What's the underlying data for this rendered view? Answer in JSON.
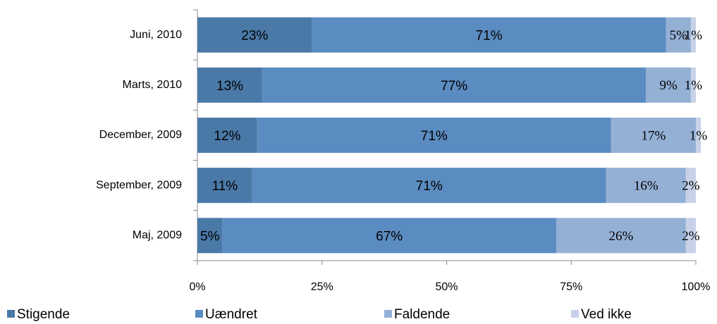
{
  "chart_data": {
    "type": "bar",
    "orientation": "horizontal",
    "stacked": true,
    "categories": [
      "Juni, 2010",
      "Marts, 2010",
      "December, 2009",
      "September, 2009",
      "Maj, 2009"
    ],
    "series": [
      {
        "name": "Stigende",
        "color": "#4a79a8",
        "values": [
          23,
          13,
          12,
          11,
          5
        ],
        "value_labels": [
          "23%",
          "13%",
          "12%",
          "11%",
          "5%"
        ]
      },
      {
        "name": "Uændret",
        "color": "#5b8cc1",
        "values": [
          71,
          77,
          71,
          71,
          67
        ],
        "value_labels": [
          "71%",
          "77%",
          "71%",
          "71%",
          "67%"
        ]
      },
      {
        "name": "Faldende",
        "color": "#94b0d5",
        "values": [
          5,
          9,
          17,
          16,
          26
        ],
        "value_labels": [
          "5%",
          "9%",
          "17%",
          "16%",
          "26%"
        ]
      },
      {
        "name": "Ved ikke",
        "color": "#c7d2e8",
        "values": [
          1,
          1,
          1,
          2,
          2
        ],
        "value_labels": [
          "1%",
          "1%",
          "1%",
          "2%",
          "2%"
        ]
      }
    ],
    "xlim": [
      0,
      100
    ],
    "xticks": [
      {
        "value": 0,
        "label": "0%"
      },
      {
        "value": 25,
        "label": "25%"
      },
      {
        "value": 50,
        "label": "50%"
      },
      {
        "value": 75,
        "label": "75%"
      },
      {
        "value": 100,
        "label": "100%"
      }
    ],
    "legend": "bottom"
  }
}
